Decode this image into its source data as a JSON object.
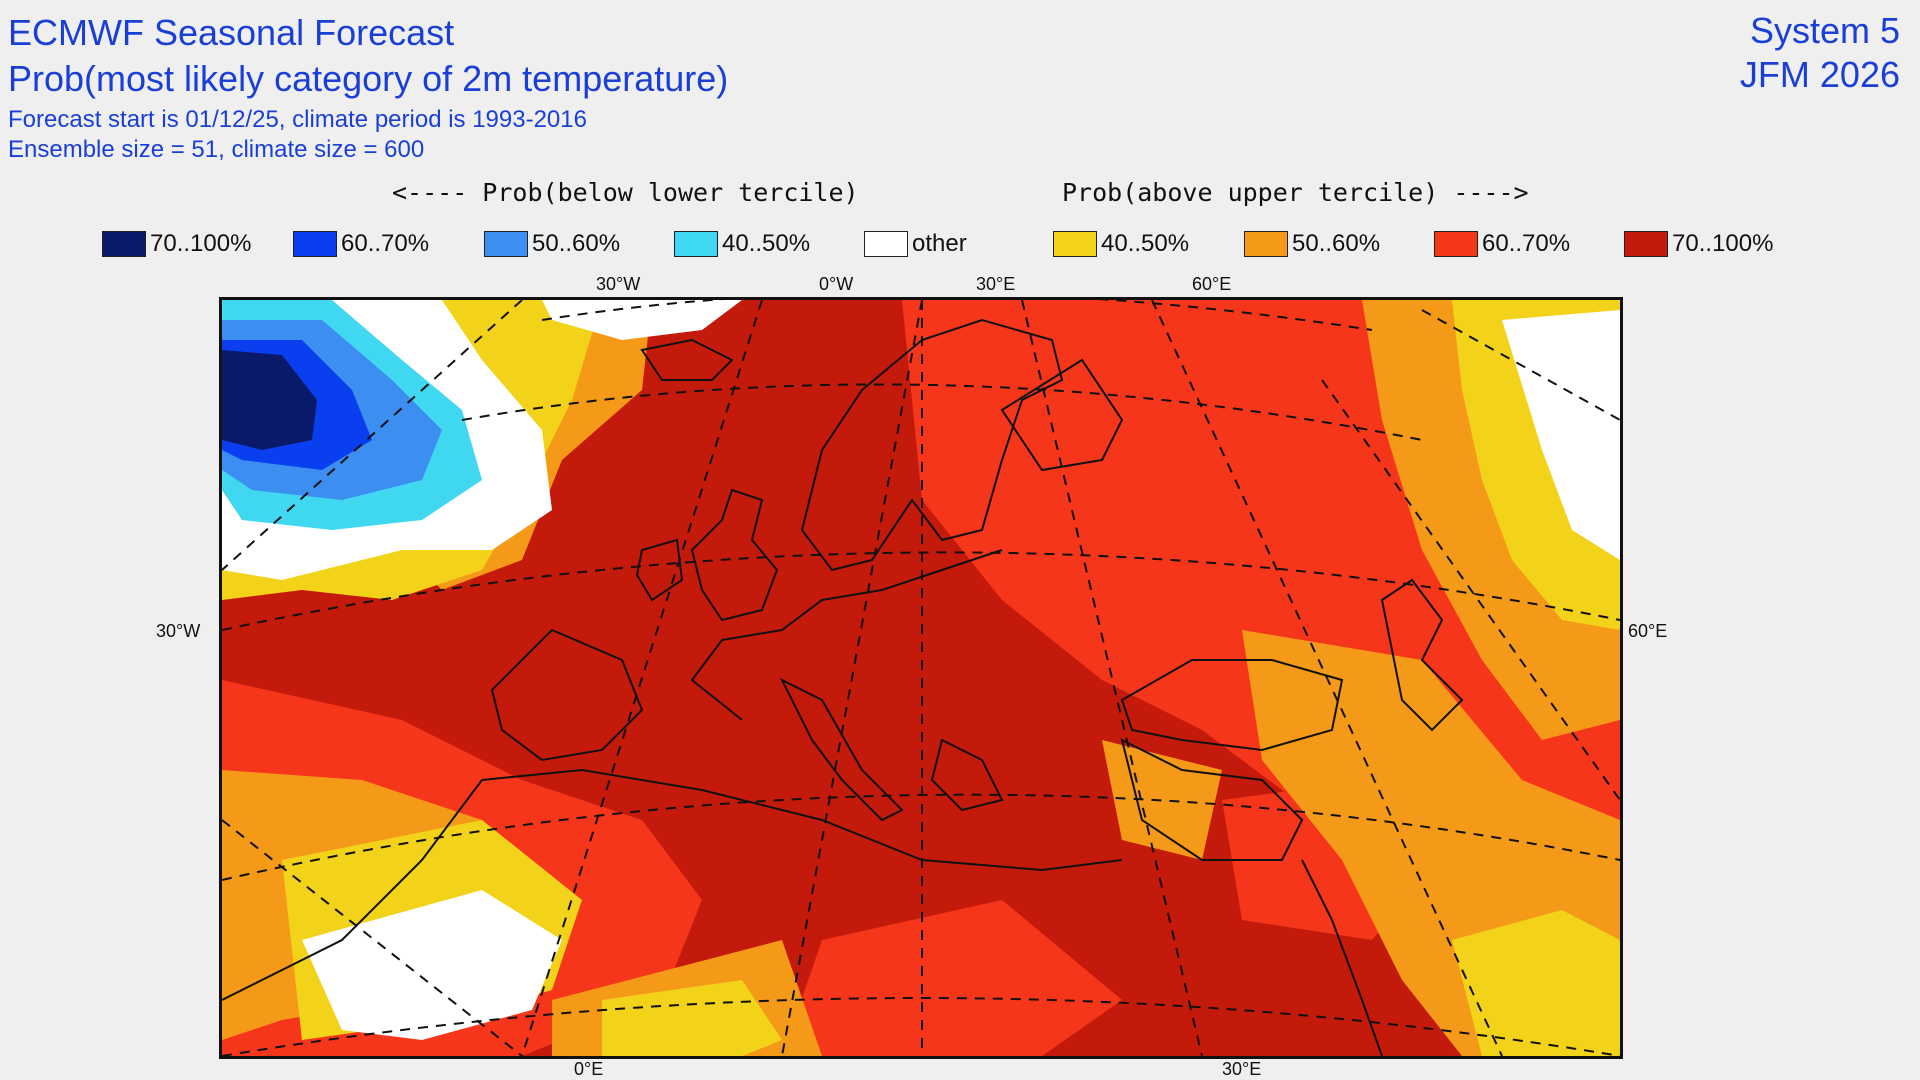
{
  "header": {
    "title": "ECMWF Seasonal Forecast",
    "subtitle": "Prob(most likely category of 2m temperature)",
    "info_line_1": "Forecast start is 01/12/25, climate period is 1993-2016",
    "info_line_2": "Ensemble size = 51, climate size = 600",
    "system": "System 5",
    "period": "JFM 2026"
  },
  "legend": {
    "below_header": "<---- Prob(below lower tercile)",
    "above_header": "Prob(above upper tercile) ---->",
    "items": [
      {
        "label": "70..100%",
        "color": "#0a1a6b"
      },
      {
        "label": "60..70%",
        "color": "#0a3ff0"
      },
      {
        "label": "50..60%",
        "color": "#3c8ff0"
      },
      {
        "label": "40..50%",
        "color": "#3fd8f0"
      },
      {
        "label": "other",
        "color": "#ffffff"
      },
      {
        "label": "40..50%",
        "color": "#f3d21a"
      },
      {
        "label": "50..60%",
        "color": "#f59a18"
      },
      {
        "label": "60..70%",
        "color": "#f5361a"
      },
      {
        "label": "70..100%",
        "color": "#c41a0c"
      }
    ]
  },
  "axes": {
    "top": [
      "30°W",
      "0°W",
      "30°E",
      "60°E"
    ],
    "left": "30°W",
    "right": "60°E",
    "bottom": [
      "0°E",
      "30°E"
    ]
  }
}
